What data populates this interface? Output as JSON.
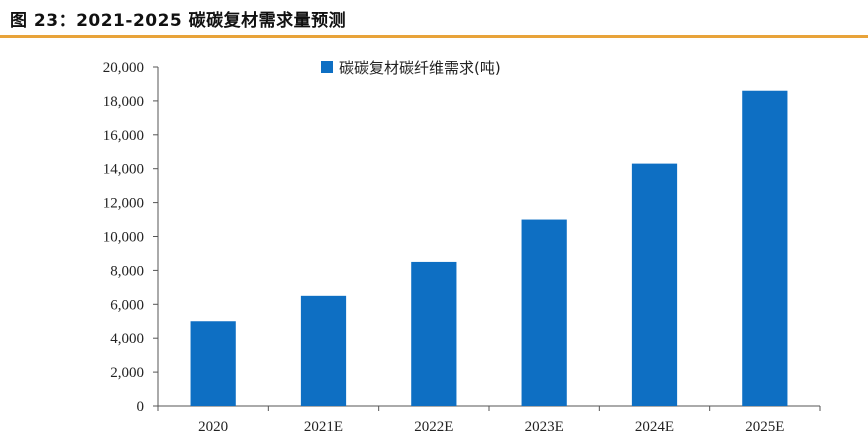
{
  "figure": {
    "title": "图 23：2021-2025 碳碳复材需求量预测"
  },
  "colors": {
    "accent_rule": "#e8a33a",
    "bar": "#0e6fc3",
    "axis": "#555555"
  },
  "chart_data": {
    "type": "bar",
    "categories": [
      "2020",
      "2021E",
      "2022E",
      "2023E",
      "2024E",
      "2025E"
    ],
    "series": [
      {
        "name": "碳碳复材碳纤维需求(吨)",
        "values": [
          5000,
          6500,
          8500,
          11000,
          14300,
          18600
        ]
      }
    ],
    "ylim": [
      0,
      20000
    ],
    "yticks": [
      0,
      2000,
      4000,
      6000,
      8000,
      10000,
      12000,
      14000,
      16000,
      18000,
      20000
    ],
    "ytick_labels": [
      "0",
      "2,000",
      "4,000",
      "6,000",
      "8,000",
      "10,000",
      "12,000",
      "14,000",
      "16,000",
      "18,000",
      "20,000"
    ],
    "grid": false,
    "legend_position": "top-center"
  }
}
